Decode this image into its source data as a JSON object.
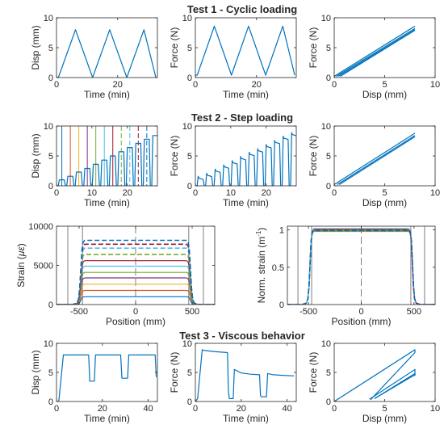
{
  "section_titles": {
    "t1": "Test 1 - Cyclic loading",
    "t2": "Test 2 - Step loading",
    "t3": "Test 3 - Viscous behavior"
  },
  "chart_data": [
    {
      "id": "t1-disp",
      "type": "line",
      "xlabel": "Time (min)",
      "ylabel": "Disp (mm)",
      "xlim": [
        0,
        33
      ],
      "ylim": [
        0,
        10
      ],
      "xticks": [
        0,
        20
      ],
      "yticks": [
        0,
        5,
        10
      ],
      "series": [
        {
          "color": "#0072BD",
          "x": [
            0,
            0.6,
            6.2,
            11.8,
            17.4,
            23.0,
            28.6,
            32.5
          ],
          "y": [
            0,
            0,
            8,
            0,
            8,
            0,
            8,
            0
          ]
        }
      ]
    },
    {
      "id": "t1-force",
      "type": "line",
      "xlabel": "Time (min)",
      "ylabel": "Force (N)",
      "xlim": [
        0,
        33
      ],
      "ylim": [
        0,
        10
      ],
      "xticks": [
        0,
        20
      ],
      "yticks": [
        0,
        5,
        10
      ],
      "series": [
        {
          "color": "#0072BD",
          "x": [
            0,
            0.6,
            6.2,
            11.8,
            17.4,
            23.0,
            28.6,
            32.5
          ],
          "y": [
            0.4,
            0.4,
            8.6,
            0.4,
            8.6,
            0.4,
            8.6,
            0.4
          ]
        }
      ]
    },
    {
      "id": "t1-fd",
      "type": "line",
      "xlabel": "Disp (mm)",
      "ylabel": "Force (N)",
      "xlim": [
        0,
        10
      ],
      "ylim": [
        0,
        10
      ],
      "xticks": [
        0,
        5,
        10
      ],
      "yticks": [
        0,
        5,
        10
      ],
      "series": [
        {
          "color": "#0072BD",
          "x": [
            0,
            8
          ],
          "y": [
            0.2,
            8.6
          ]
        },
        {
          "color": "#0072BD",
          "x": [
            0.2,
            8
          ],
          "y": [
            0.2,
            8.2
          ]
        },
        {
          "color": "#0072BD",
          "x": [
            0.4,
            8
          ],
          "y": [
            0.2,
            8.0
          ]
        },
        {
          "color": "#0072BD",
          "x": [
            0.6,
            8
          ],
          "y": [
            0.2,
            7.9
          ]
        }
      ]
    },
    {
      "id": "t2-disp",
      "type": "line",
      "xlabel": "Time (min)",
      "ylabel": "Disp (mm)",
      "xlim": [
        0,
        28.5
      ],
      "ylim": [
        0,
        10
      ],
      "xticks": [
        0,
        10,
        20
      ],
      "yticks": [
        0,
        5,
        10
      ],
      "vlines": [
        {
          "x": 1.5,
          "color": "#0072BD",
          "dash": "solid"
        },
        {
          "x": 3.9,
          "color": "#D95319",
          "dash": "solid"
        },
        {
          "x": 6.3,
          "color": "#EDB120",
          "dash": "solid"
        },
        {
          "x": 8.7,
          "color": "#7E2F8E",
          "dash": "solid"
        },
        {
          "x": 11.1,
          "color": "#77AC30",
          "dash": "solid"
        },
        {
          "x": 13.5,
          "color": "#4DBEEE",
          "dash": "solid"
        },
        {
          "x": 15.9,
          "color": "#A2142F",
          "dash": "solid"
        },
        {
          "x": 18.3,
          "color": "#77AC30",
          "dash": "dash"
        },
        {
          "x": 20.7,
          "color": "#4DBEEE",
          "dash": "dash"
        },
        {
          "x": 23.1,
          "color": "#A2142F",
          "dash": "dash"
        },
        {
          "x": 25.5,
          "color": "#0072BD",
          "dash": "dash"
        }
      ],
      "series": [
        {
          "color": "#0072BD",
          "steps": [
            1.0,
            1.6,
            2.3,
            2.9,
            3.6,
            4.3,
            5.0,
            5.7,
            6.4,
            7.1,
            7.8,
            8.4
          ]
        }
      ]
    },
    {
      "id": "t2-force",
      "type": "line",
      "xlabel": "Time (min)",
      "ylabel": "Force (N)",
      "xlim": [
        0,
        28.5
      ],
      "ylim": [
        0,
        10
      ],
      "xticks": [
        0,
        10,
        20
      ],
      "yticks": [
        0,
        5,
        10
      ],
      "series": [
        {
          "color": "#0072BD",
          "steps": [
            1.6,
            2.1,
            2.8,
            3.5,
            4.2,
            4.9,
            5.6,
            6.2,
            6.9,
            7.6,
            8.3,
            8.9
          ],
          "relax": 0.55
        }
      ]
    },
    {
      "id": "t2-fd",
      "type": "line",
      "xlabel": "Disp (mm)",
      "ylabel": "Force (N)",
      "xlim": [
        0,
        10
      ],
      "ylim": [
        0,
        10
      ],
      "xticks": [
        0,
        5,
        10
      ],
      "yticks": [
        0,
        5,
        10
      ],
      "series": [
        {
          "color": "#0072BD",
          "x": [
            0,
            8
          ],
          "y": [
            0.2,
            8.8
          ]
        },
        {
          "color": "#0072BD",
          "x": [
            0.3,
            8
          ],
          "y": [
            0.2,
            8.4
          ]
        },
        {
          "color": "#0072BD",
          "x": [
            0.5,
            8
          ],
          "y": [
            0.2,
            8.2
          ]
        }
      ]
    },
    {
      "id": "strain",
      "type": "line",
      "xlabel": "Position (mm)",
      "ylabel": "Strain (με)",
      "ylabel_parts": [
        "Strain (",
        "με",
        ")"
      ],
      "xlim": [
        -700,
        700
      ],
      "ylim": [
        0,
        10000
      ],
      "xticks": [
        -500,
        0,
        500
      ],
      "yticks": [
        0,
        5000,
        10000
      ],
      "vlines": [
        {
          "x": -600,
          "color": "#7f7f7f",
          "dash": "solid"
        },
        {
          "x": -470,
          "color": "#7f7f7f",
          "dash": "solid"
        },
        {
          "x": 0,
          "color": "#7f7f7f",
          "dash": "longdash"
        },
        {
          "x": 470,
          "color": "#7f7f7f",
          "dash": "solid"
        },
        {
          "x": 600,
          "color": "#7f7f7f",
          "dash": "solid"
        }
      ],
      "series": [
        {
          "plateau": 1000,
          "color": "#0072BD",
          "dash": "solid"
        },
        {
          "plateau": 1800,
          "color": "#D95319",
          "dash": "solid"
        },
        {
          "plateau": 2600,
          "color": "#EDB120",
          "dash": "solid"
        },
        {
          "plateau": 3400,
          "color": "#7E2F8E",
          "dash": "solid"
        },
        {
          "plateau": 4100,
          "color": "#77AC30",
          "dash": "solid"
        },
        {
          "plateau": 4900,
          "color": "#4DBEEE",
          "dash": "solid"
        },
        {
          "plateau": 5600,
          "color": "#A2142F",
          "dash": "solid"
        },
        {
          "plateau": 6400,
          "color": "#77AC30",
          "dash": "dash"
        },
        {
          "plateau": 7200,
          "color": "#4DBEEE",
          "dash": "dash"
        },
        {
          "plateau": 7700,
          "color": "#A2142F",
          "dash": "dash"
        },
        {
          "plateau": 8200,
          "color": "#0072BD",
          "dash": "dash"
        }
      ]
    },
    {
      "id": "norm-strain",
      "type": "line",
      "xlabel": "Position (mm)",
      "ylabel": "Norm. strain (m⁻¹)",
      "ylabel_parts": [
        "Norm. strain (m",
        "-1",
        ")"
      ],
      "xlim": [
        -700,
        700
      ],
      "ylim": [
        0,
        1.05
      ],
      "xticks": [
        -500,
        0,
        500
      ],
      "yticks": [
        0,
        0.5,
        1
      ],
      "ytick_labels": [
        "0",
        "0.5",
        "1"
      ],
      "vlines": [
        {
          "x": -600,
          "color": "#7f7f7f",
          "dash": "solid"
        },
        {
          "x": -470,
          "color": "#7f7f7f",
          "dash": "solid"
        },
        {
          "x": 0,
          "color": "#7f7f7f",
          "dash": "longdash"
        },
        {
          "x": 470,
          "color": "#7f7f7f",
          "dash": "solid"
        },
        {
          "x": 600,
          "color": "#7f7f7f",
          "dash": "solid"
        }
      ],
      "series": [
        {
          "plateau": 1.0,
          "color": "#0072BD",
          "dash": "solid"
        },
        {
          "plateau": 1.01,
          "color": "#D95319",
          "dash": "solid"
        },
        {
          "plateau": 0.99,
          "color": "#EDB120",
          "dash": "solid"
        },
        {
          "plateau": 1.0,
          "color": "#7E2F8E",
          "dash": "solid"
        },
        {
          "plateau": 0.98,
          "color": "#77AC30",
          "dash": "solid"
        },
        {
          "plateau": 1.02,
          "color": "#4DBEEE",
          "dash": "solid"
        },
        {
          "plateau": 1.0,
          "color": "#A2142F",
          "dash": "dash"
        },
        {
          "plateau": 0.99,
          "color": "#0072BD",
          "dash": "dash"
        }
      ]
    },
    {
      "id": "t3-disp",
      "type": "line",
      "xlabel": "Time (min)",
      "ylabel": "Disp (mm)",
      "xlim": [
        0,
        44
      ],
      "ylim": [
        0,
        10
      ],
      "xticks": [
        0,
        20,
        40
      ],
      "yticks": [
        0,
        5,
        10
      ],
      "series": [
        {
          "color": "#0072BD",
          "x": [
            0,
            1,
            3,
            14,
            14.5,
            16.5,
            17,
            28,
            28.5,
            31,
            31.5,
            43,
            43.5
          ],
          "y": [
            0,
            0,
            8,
            8,
            3.5,
            3.5,
            8,
            8,
            4,
            4,
            8,
            8,
            4.2
          ]
        }
      ]
    },
    {
      "id": "t3-force",
      "type": "line",
      "xlabel": "Time (min)",
      "ylabel": "Force (N)",
      "xlim": [
        0,
        44
      ],
      "ylim": [
        0,
        10
      ],
      "xticks": [
        0,
        20,
        40
      ],
      "yticks": [
        0,
        5,
        10
      ],
      "series": [
        {
          "color": "#0072BD",
          "x": [
            0,
            1,
            3,
            3.5,
            8,
            14,
            14.4,
            14.8,
            16.5,
            17,
            20,
            24,
            28,
            28.4,
            28.8,
            31,
            31.5,
            34,
            38,
            43
          ],
          "y": [
            0,
            0.5,
            8.9,
            8.8,
            8.6,
            8.4,
            2.0,
            0.5,
            0.5,
            5.5,
            4.9,
            4.7,
            4.6,
            1.0,
            0.8,
            0.8,
            4.8,
            4.6,
            4.5,
            4.4
          ]
        }
      ]
    },
    {
      "id": "t3-fd",
      "type": "line",
      "xlabel": "Disp (mm)",
      "ylabel": "Force (N)",
      "xlim": [
        0,
        10
      ],
      "ylim": [
        0,
        10
      ],
      "xticks": [
        0,
        5,
        10
      ],
      "yticks": [
        0,
        5,
        10
      ],
      "series": [
        {
          "color": "#0072BD",
          "x": [
            0,
            8,
            8
          ],
          "y": [
            0,
            8.9,
            8.4
          ]
        },
        {
          "color": "#0072BD",
          "x": [
            3.5,
            8,
            8
          ],
          "y": [
            0.4,
            5.5,
            4.6
          ]
        },
        {
          "color": "#0072BD",
          "x": [
            4.0,
            8,
            8
          ],
          "y": [
            0.5,
            4.8,
            4.4
          ]
        },
        {
          "color": "#0072BD",
          "x": [
            8,
            3.6
          ],
          "y": [
            8.4,
            0.3
          ]
        },
        {
          "color": "#0072BD",
          "x": [
            8,
            4.0
          ],
          "y": [
            4.6,
            0.5
          ]
        }
      ]
    }
  ]
}
